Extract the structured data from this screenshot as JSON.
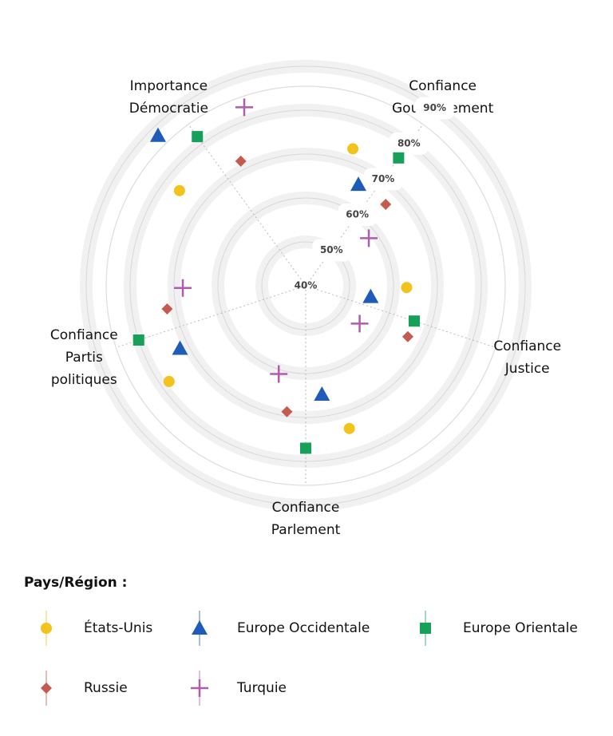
{
  "chart_data": {
    "type": "radar",
    "axes": [
      "Confiance Gouvernement",
      "Confiance Justice",
      "Confiance Parlement",
      "Confiance Partis politiques",
      "Importance Démocratie"
    ],
    "ylim": [
      40,
      90
    ],
    "yticks": [
      {
        "value": 40,
        "label": "40%"
      },
      {
        "value": 50,
        "label": "50%"
      },
      {
        "value": 60,
        "label": "60%"
      },
      {
        "value": 70,
        "label": "70%"
      },
      {
        "value": 80,
        "label": "80%"
      },
      {
        "value": 90,
        "label": "90%"
      }
    ],
    "legend_title": "Pays/Région :",
    "series": [
      {
        "name": "États-Unis",
        "color": "#f2c31c",
        "marker": "circle",
        "values": [
          73,
          63,
          74,
          78,
          76
        ]
      },
      {
        "name": "Europe Occidentale",
        "color": "#1f5bb8",
        "marker": "triangle",
        "values": [
          66,
          55,
          65,
          72,
          88
        ]
      },
      {
        "name": "Europe Orientale",
        "color": "#16a05a",
        "marker": "square",
        "values": [
          76,
          66,
          77,
          80,
          82
        ]
      },
      {
        "name": "Russie",
        "color": "#c55a4e",
        "marker": "diamond",
        "values": [
          66,
          66,
          69,
          72,
          72
        ]
      },
      {
        "name": "Turquie",
        "color": "#b05cad",
        "marker": "plus",
        "values": [
          58,
          55,
          61,
          68,
          83
        ]
      }
    ]
  }
}
